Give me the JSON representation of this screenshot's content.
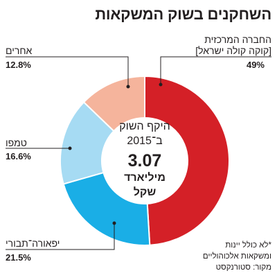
{
  "chart_data": {
    "type": "pie",
    "donut": true,
    "title": "השחקנים בשוק המשקאות",
    "categories": [
      "החברה המרכזית",
      "יפאורה־תבורי",
      "טמפו",
      "אחרים"
    ],
    "category_subtitles": [
      "[קוקה קולה ישראל]",
      "",
      "",
      ""
    ],
    "values": [
      49,
      21.5,
      16.6,
      12.8
    ],
    "value_labels": [
      "49%",
      "21.5%",
      "16.6%",
      "12.8%"
    ],
    "colors": [
      "#D42027",
      "#1AAEE6",
      "#A6DBF3",
      "#F5B49C"
    ],
    "center_text": {
      "line1": "היקף השוק",
      "line2": "ב־2015",
      "value": "3.07",
      "unit_line1": "מיליארד",
      "unit_line2": "שקל"
    }
  },
  "notes": {
    "footnote": [
      "*לא כולל יינות",
      "ומשקאות אלכוהוליים"
    ],
    "source": "מקור: סטורנקסט"
  }
}
